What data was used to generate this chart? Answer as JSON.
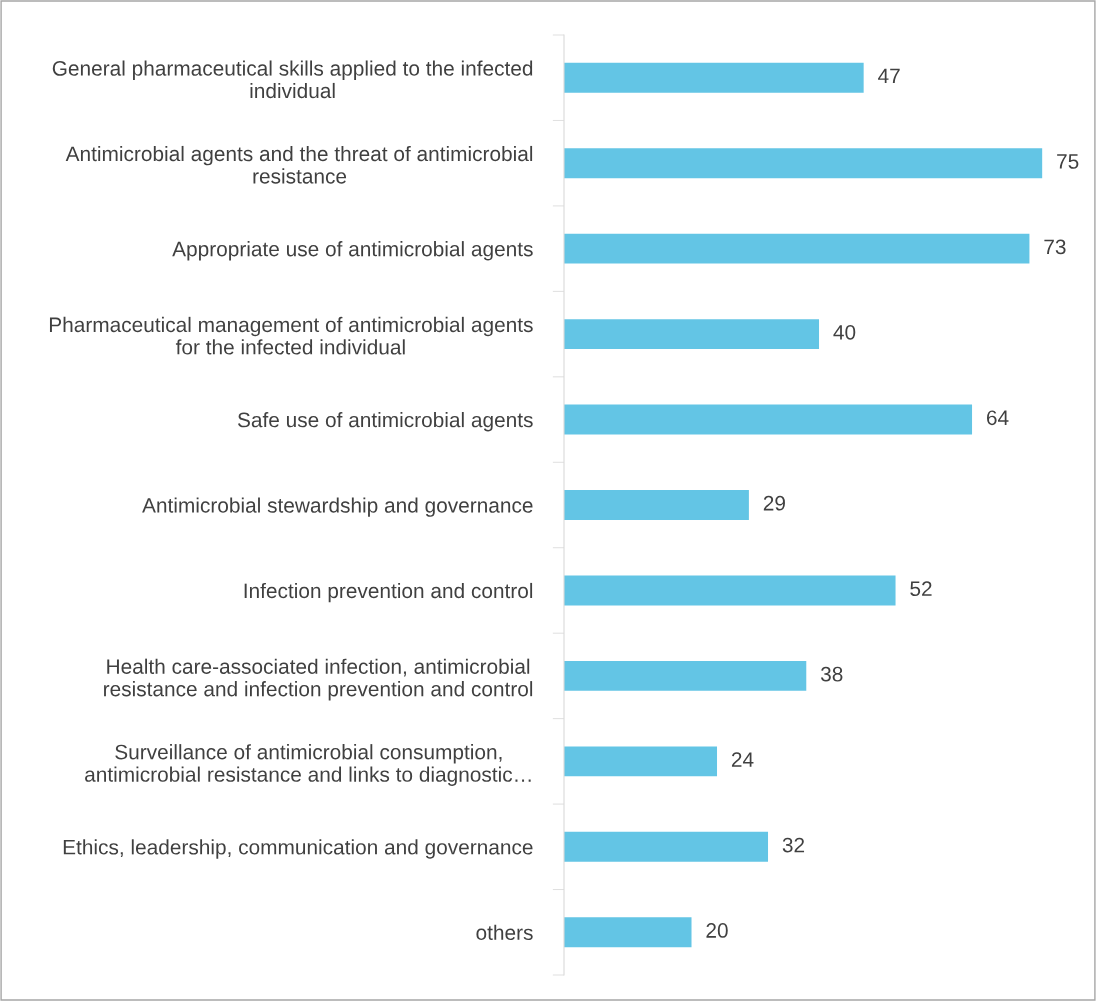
{
  "chart_data": {
    "type": "bar",
    "orientation": "horizontal",
    "data_labels": true,
    "color": "#63c5e5",
    "grid": false,
    "legend": false,
    "categories": [
      "General pharmaceutical skills applied to the infected\nindividual",
      "Antimicrobial agents and the threat of antimicrobial\nresistance",
      "Appropriate use of antimicrobial agents",
      "Pharmaceutical management of antimicrobial agents\nfor the infected individual",
      "Safe use of antimicrobial agents",
      "Antimicrobial stewardship and governance",
      "Infection prevention and control",
      "Health care-associated infection, antimicrobial\nresistance and infection prevention and control",
      "Surveillance of antimicrobial consumption,\nantimicrobial resistance and links to diagnostic…",
      "Ethics, leadership, communication and governance",
      "others"
    ],
    "values": [
      47,
      75,
      73,
      40,
      64,
      29,
      52,
      38,
      24,
      32,
      20
    ]
  }
}
